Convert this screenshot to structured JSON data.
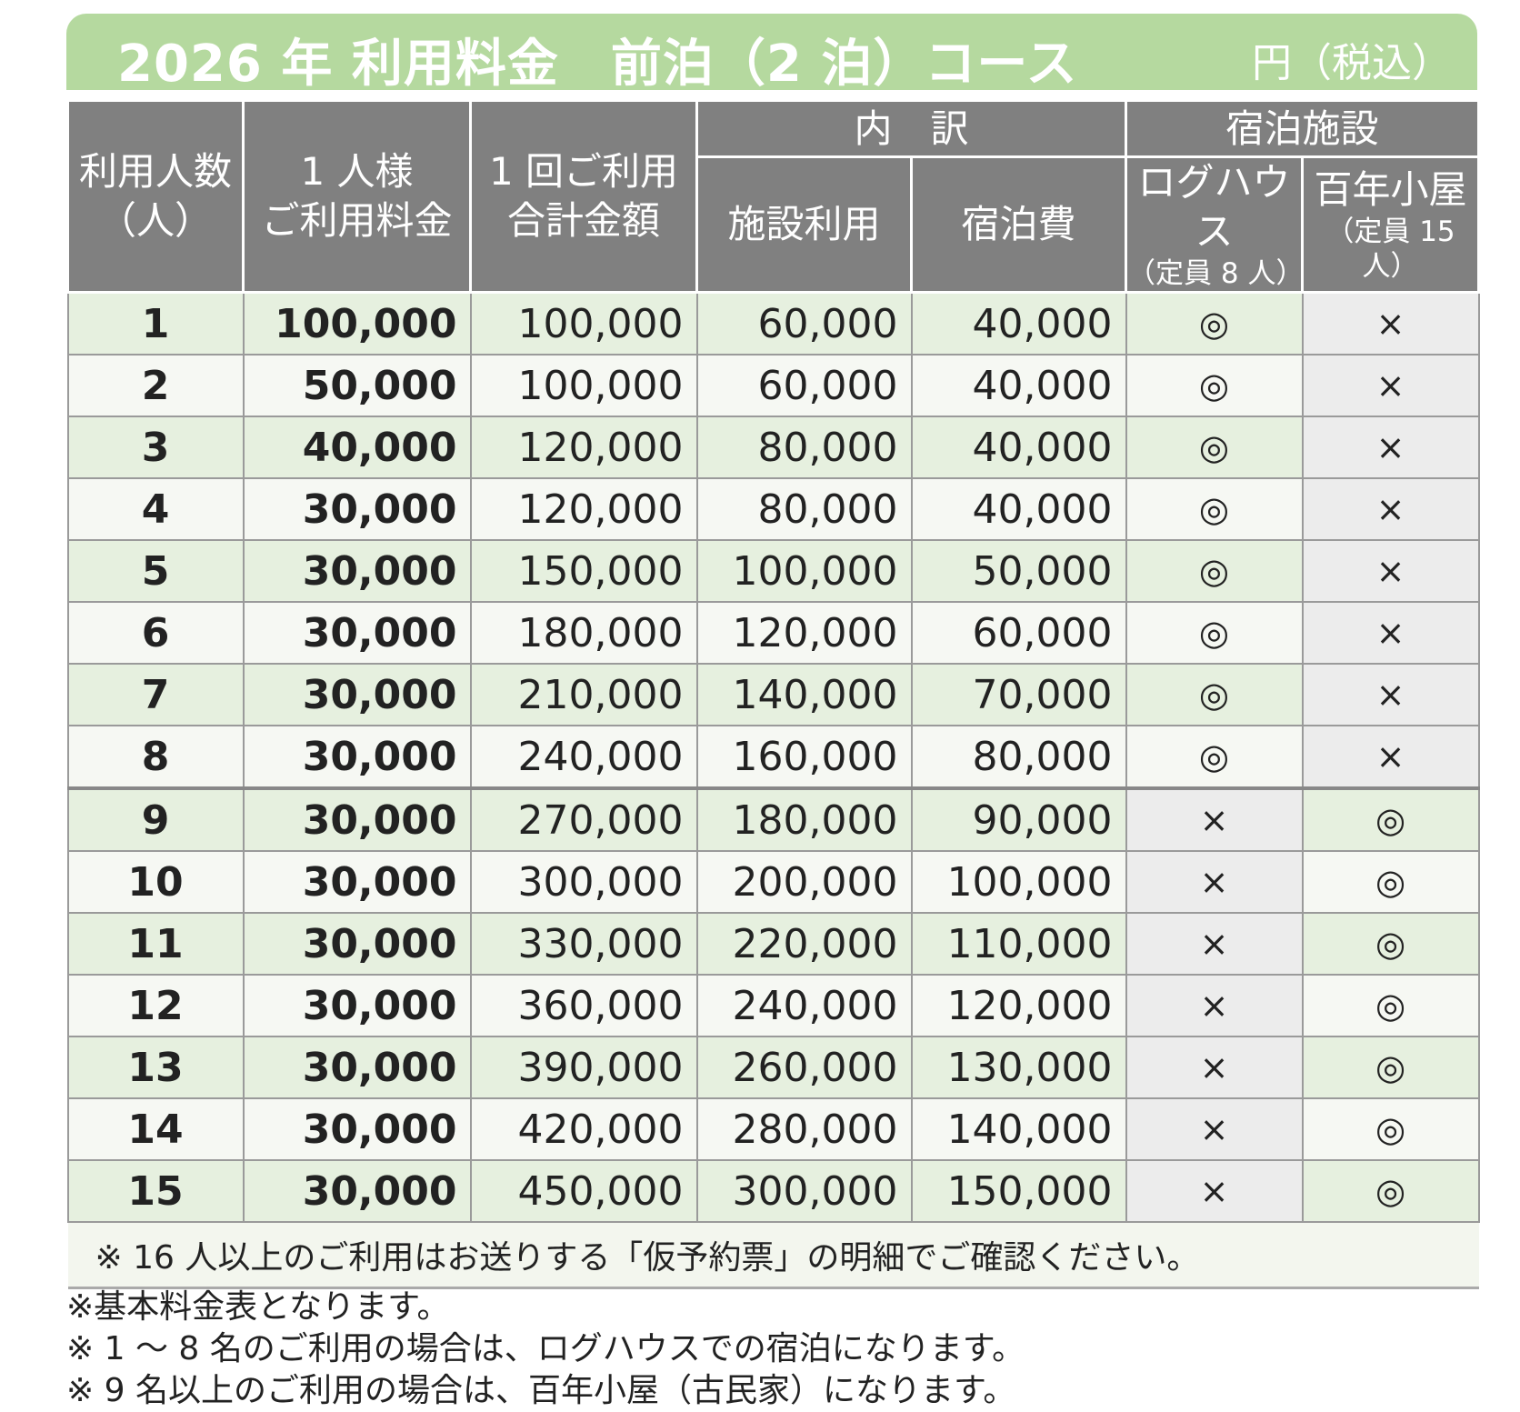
{
  "header": {
    "title": "2026 年 利用料金　前泊（2 泊）コース",
    "unit": "円（税込）"
  },
  "table": {
    "headers": {
      "people": [
        "利用人数",
        "（人）"
      ],
      "per_person": [
        "1 人様",
        "ご利用料金"
      ],
      "total": [
        "1 回ご利用",
        "合計金額"
      ],
      "breakdown": {
        "label": "内　訳",
        "facility": "施設利用",
        "lodging": "宿泊費"
      },
      "accommodation": {
        "label": "宿泊施設",
        "log_house": [
          "ログハウス",
          "（定員 8 人）"
        ],
        "old_house": [
          "百年小屋",
          "（定員 15 人）"
        ]
      }
    },
    "rows": [
      [
        "1",
        "100,000",
        "100,000",
        "60,000",
        "40,000",
        "◎",
        "×"
      ],
      [
        "2",
        "50,000",
        "100,000",
        "60,000",
        "40,000",
        "◎",
        "×"
      ],
      [
        "3",
        "40,000",
        "120,000",
        "80,000",
        "40,000",
        "◎",
        "×"
      ],
      [
        "4",
        "30,000",
        "120,000",
        "80,000",
        "40,000",
        "◎",
        "×"
      ],
      [
        "5",
        "30,000",
        "150,000",
        "100,000",
        "50,000",
        "◎",
        "×"
      ],
      [
        "6",
        "30,000",
        "180,000",
        "120,000",
        "60,000",
        "◎",
        "×"
      ],
      [
        "7",
        "30,000",
        "210,000",
        "140,000",
        "70,000",
        "◎",
        "×"
      ],
      [
        "8",
        "30,000",
        "240,000",
        "160,000",
        "80,000",
        "◎",
        "×"
      ],
      [
        "9",
        "30,000",
        "270,000",
        "180,000",
        "90,000",
        "×",
        "◎"
      ],
      [
        "10",
        "30,000",
        "300,000",
        "200,000",
        "100,000",
        "×",
        "◎"
      ],
      [
        "11",
        "30,000",
        "330,000",
        "220,000",
        "110,000",
        "×",
        "◎"
      ],
      [
        "12",
        "30,000",
        "360,000",
        "240,000",
        "120,000",
        "×",
        "◎"
      ],
      [
        "13",
        "30,000",
        "390,000",
        "260,000",
        "130,000",
        "×",
        "◎"
      ],
      [
        "14",
        "30,000",
        "420,000",
        "280,000",
        "140,000",
        "×",
        "◎"
      ],
      [
        "15",
        "30,000",
        "450,000",
        "300,000",
        "150,000",
        "×",
        "◎"
      ]
    ],
    "note": "※ 16 人以上のご利用はお送りする「仮予約票」の明細でご確認ください。"
  },
  "notes": [
    "※基本料金表となります。",
    "※ 1 ～ 8 名のご利用の場合は、ログハウスでの宿泊になります。",
    "※ 9 名以上のご利用の場合は、百年小屋（古民家）になります。"
  ]
}
